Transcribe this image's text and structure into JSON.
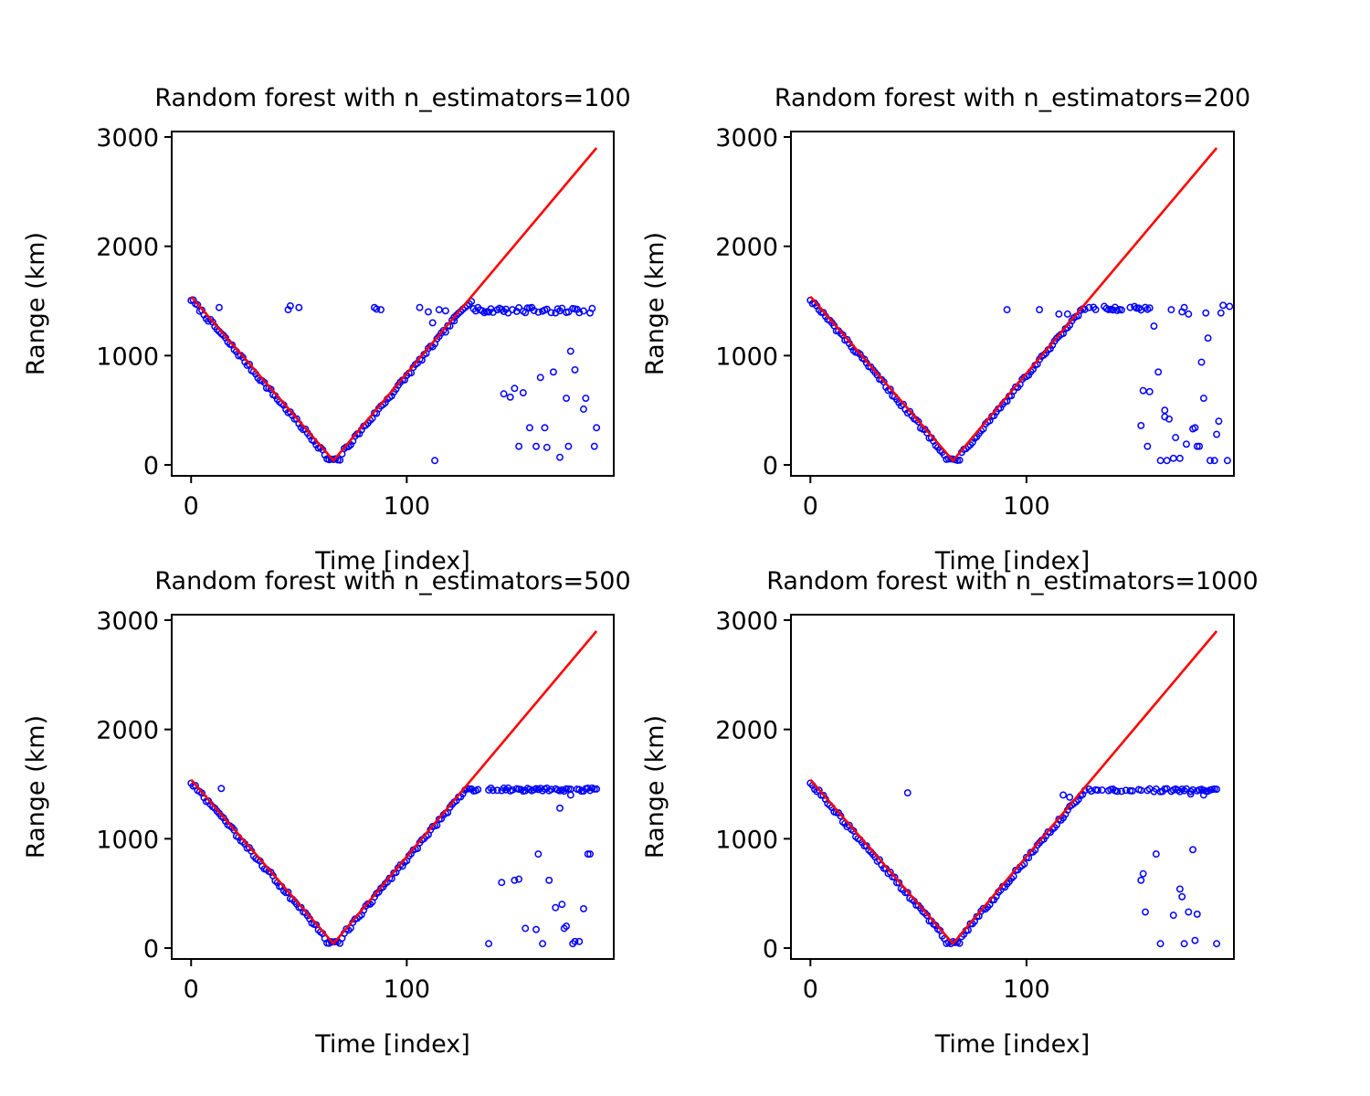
{
  "figure": {
    "colors": {
      "observed": "#0000ff",
      "predicted": "#ff0000",
      "axes": "#000000"
    }
  },
  "chart_data": [
    {
      "type": "scatter",
      "title": "Random forest with n_estimators=100",
      "xlabel": "Time [index]",
      "ylabel": "Range (km)",
      "xlim": [
        -9,
        196
      ],
      "ylim": [
        -100,
        3050
      ],
      "xticks": [
        0,
        100
      ],
      "yticks": [
        0,
        1000,
        2000,
        3000
      ],
      "grid": false,
      "legend": "none",
      "line": [
        [
          0,
          1540
        ],
        [
          66,
          40
        ],
        [
          188,
          2900
        ]
      ],
      "outliers": [
        [
          13,
          1440
        ],
        [
          45,
          1420
        ],
        [
          46,
          1455
        ],
        [
          50,
          1440
        ],
        [
          85,
          1440
        ],
        [
          86,
          1425
        ],
        [
          88,
          1420
        ],
        [
          106,
          1440
        ],
        [
          110,
          1400
        ],
        [
          112,
          1300
        ],
        [
          113,
          40
        ],
        [
          115,
          1420
        ],
        [
          118,
          1410
        ],
        [
          122,
          1350
        ],
        [
          145,
          650
        ],
        [
          148,
          620
        ],
        [
          150,
          700
        ],
        [
          152,
          170
        ],
        [
          154,
          660
        ],
        [
          157,
          340
        ],
        [
          160,
          170
        ],
        [
          162,
          800
        ],
        [
          164,
          340
        ],
        [
          165,
          160
        ],
        [
          168,
          850
        ],
        [
          171,
          70
        ],
        [
          174,
          610
        ],
        [
          175,
          170
        ],
        [
          176,
          1040
        ],
        [
          178,
          870
        ],
        [
          182,
          510
        ],
        [
          183,
          610
        ],
        [
          187,
          170
        ],
        [
          188,
          340
        ]
      ],
      "plateau": [
        130,
        188
      ],
      "plateau_value": 1415,
      "plateau_jitter": 25
    },
    {
      "type": "scatter",
      "title": "Random forest with n_estimators=200",
      "xlabel": "Time [index]",
      "ylabel": "Range (km)",
      "xlim": [
        -9,
        196
      ],
      "ylim": [
        -100,
        3050
      ],
      "xticks": [
        0,
        100
      ],
      "yticks": [
        0,
        1000,
        2000,
        3000
      ],
      "grid": false,
      "legend": "none",
      "line": [
        [
          0,
          1540
        ],
        [
          66,
          40
        ],
        [
          188,
          2900
        ]
      ],
      "outliers": [
        [
          91,
          1420
        ],
        [
          106,
          1420
        ],
        [
          115,
          1380
        ],
        [
          119,
          1380
        ],
        [
          153,
          360
        ],
        [
          154,
          680
        ],
        [
          156,
          170
        ],
        [
          157,
          670
        ],
        [
          159,
          1270
        ],
        [
          161,
          850
        ],
        [
          162,
          40
        ],
        [
          164,
          500
        ],
        [
          164,
          440
        ],
        [
          165,
          40
        ],
        [
          166,
          420
        ],
        [
          167,
          1420
        ],
        [
          168,
          60
        ],
        [
          169,
          250
        ],
        [
          171,
          60
        ],
        [
          172,
          1400
        ],
        [
          173,
          1440
        ],
        [
          174,
          190
        ],
        [
          175,
          1380
        ],
        [
          177,
          330
        ],
        [
          178,
          340
        ],
        [
          179,
          170
        ],
        [
          180,
          170
        ],
        [
          181,
          940
        ],
        [
          182,
          610
        ],
        [
          183,
          1390
        ],
        [
          184,
          1160
        ],
        [
          185,
          40
        ],
        [
          187,
          40
        ],
        [
          188,
          280
        ],
        [
          189,
          400
        ],
        [
          190,
          1390
        ],
        [
          191,
          1460
        ],
        [
          193,
          40
        ],
        [
          194,
          1450
        ]
      ],
      "plateau": [
        125,
        157
      ],
      "plateau_value": 1430,
      "plateau_jitter": 20
    },
    {
      "type": "scatter",
      "title": "Random forest with n_estimators=500",
      "xlabel": "Time [index]",
      "ylabel": "Range (km)",
      "xlim": [
        -9,
        196
      ],
      "ylim": [
        -100,
        3050
      ],
      "xticks": [
        0,
        100
      ],
      "yticks": [
        0,
        1000,
        2000,
        3000
      ],
      "grid": false,
      "legend": "none",
      "line": [
        [
          0,
          1540
        ],
        [
          66,
          40
        ],
        [
          188,
          2900
        ]
      ],
      "outliers": [
        [
          14,
          1460
        ],
        [
          138,
          40
        ],
        [
          144,
          600
        ],
        [
          150,
          620
        ],
        [
          152,
          630
        ],
        [
          155,
          180
        ],
        [
          160,
          170
        ],
        [
          161,
          860
        ],
        [
          163,
          40
        ],
        [
          166,
          620
        ],
        [
          169,
          370
        ],
        [
          171,
          1280
        ],
        [
          172,
          400
        ],
        [
          173,
          180
        ],
        [
          174,
          200
        ],
        [
          176,
          1400
        ],
        [
          177,
          40
        ],
        [
          178,
          60
        ],
        [
          180,
          60
        ],
        [
          182,
          360
        ],
        [
          184,
          860
        ],
        [
          185,
          860
        ]
      ],
      "plateau": [
        126,
        188
      ],
      "plateau_value": 1450,
      "plateau_jitter": 15
    },
    {
      "type": "scatter",
      "title": "Random forest with n_estimators=1000",
      "xlabel": "Time [index]",
      "ylabel": "Range (km)",
      "xlim": [
        -9,
        196
      ],
      "ylim": [
        -100,
        3050
      ],
      "xticks": [
        0,
        100
      ],
      "yticks": [
        0,
        1000,
        2000,
        3000
      ],
      "grid": false,
      "legend": "none",
      "line": [
        [
          0,
          1540
        ],
        [
          66,
          40
        ],
        [
          188,
          2900
        ]
      ],
      "outliers": [
        [
          45,
          1420
        ],
        [
          117,
          1400
        ],
        [
          120,
          1380
        ],
        [
          153,
          620
        ],
        [
          154,
          680
        ],
        [
          155,
          330
        ],
        [
          160,
          860
        ],
        [
          162,
          40
        ],
        [
          168,
          300
        ],
        [
          171,
          540
        ],
        [
          172,
          470
        ],
        [
          173,
          40
        ],
        [
          175,
          330
        ],
        [
          176,
          1410
        ],
        [
          177,
          900
        ],
        [
          178,
          70
        ],
        [
          179,
          310
        ],
        [
          182,
          1400
        ],
        [
          188,
          40
        ]
      ],
      "plateau": [
        126,
        188
      ],
      "plateau_value": 1445,
      "plateau_jitter": 15
    }
  ]
}
